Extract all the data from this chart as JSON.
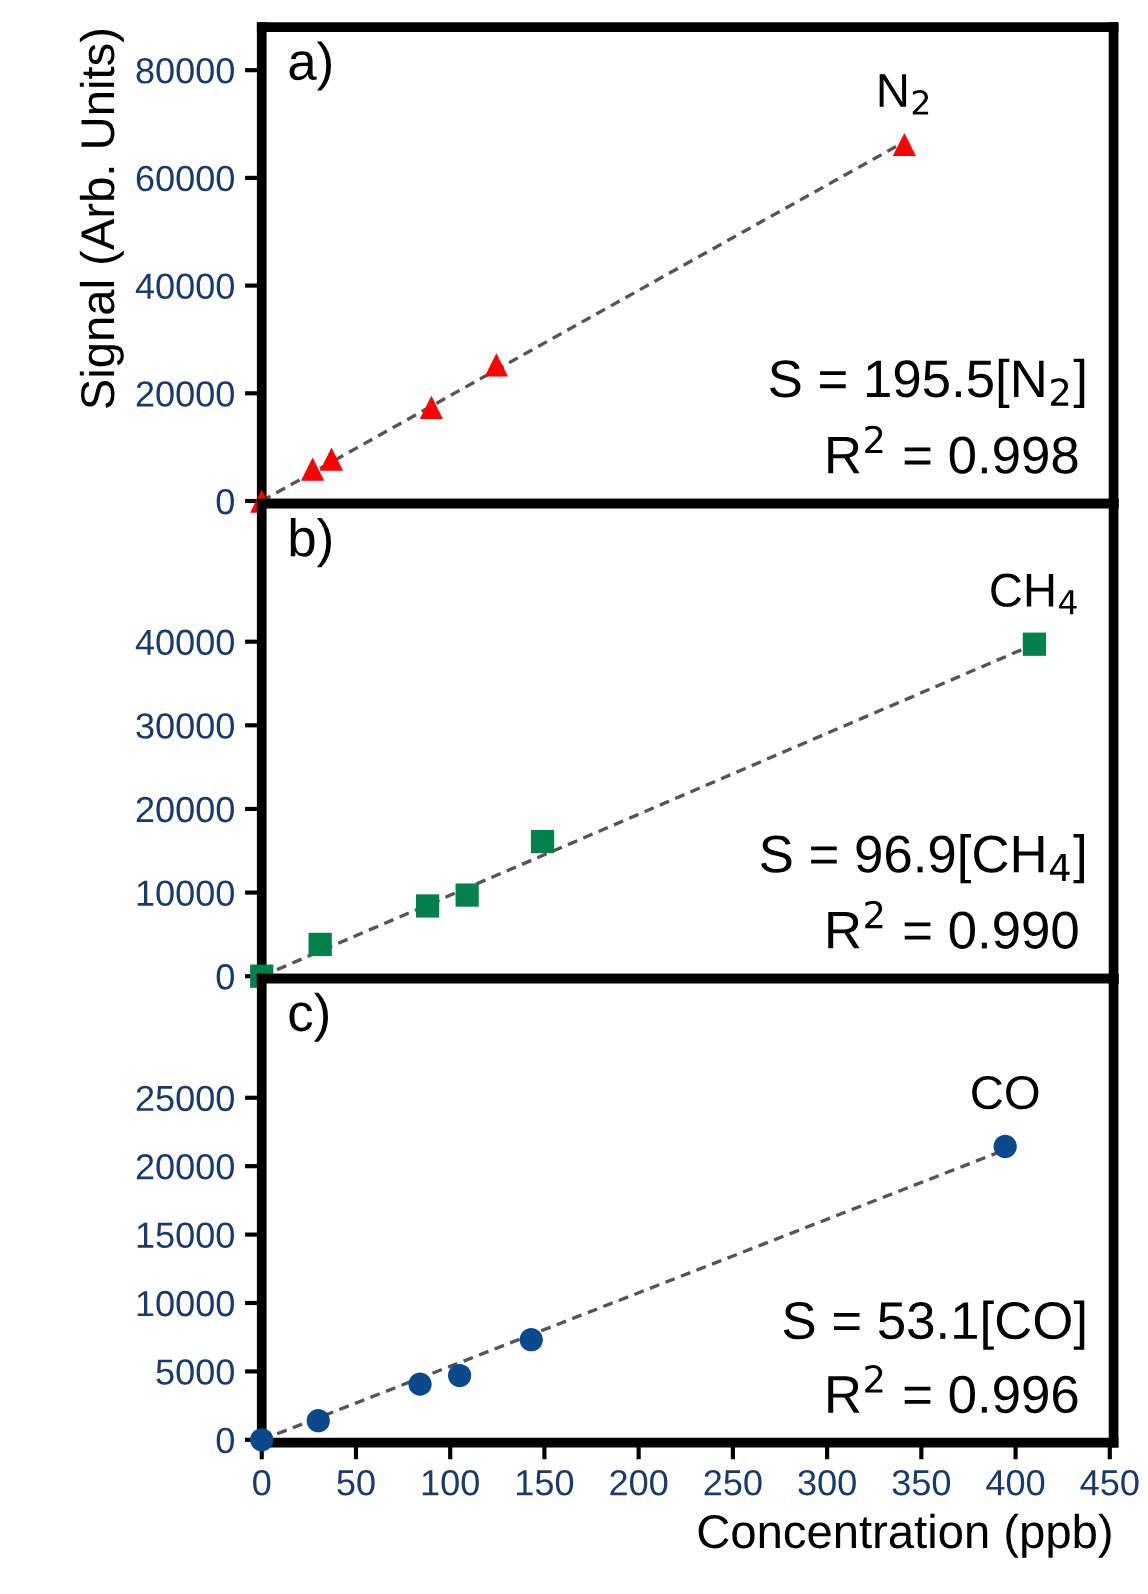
{
  "chart_data": [
    {
      "type": "scatter",
      "ylabel": "Signal (Arb. Units)",
      "annotations": [
        "a)",
        "S = 195.5[N$_{2}$]",
        "R$^{2}$ = 0.998"
      ],
      "xlim": [
        0,
        452
      ],
      "xticks": [
        0,
        50,
        100,
        150,
        200,
        250,
        300,
        350,
        400,
        450
      ],
      "ylim": [
        -500,
        88000
      ],
      "yticks": [
        0,
        20000,
        40000,
        60000,
        80000
      ],
      "tick_labels": "y",
      "grid": false,
      "legend": false,
      "series": [
        {
          "name": "N$_{2}$",
          "color": "#ff0000",
          "marker": "triangle",
          "x": [
            0,
            27,
            37,
            90,
            124.5,
            341
          ],
          "values": [
            0,
            5900,
            7800,
            17400,
            25300,
            66200
          ]
        },
        {
          "type": "line",
          "color": "#555555",
          "line_style": "dashed",
          "marker": "none",
          "x": [
            0,
            341
          ],
          "values": [
            0,
            66700
          ]
        }
      ]
    },
    {
      "type": "scatter",
      "annotations": [
        "b)",
        "S = 96.9[CH$_{4}$]",
        "R$^{2}$ = 0.990"
      ],
      "xlim": [
        0,
        452
      ],
      "xticks": [
        0,
        50,
        100,
        150,
        200,
        250,
        300,
        350,
        400,
        450
      ],
      "ylim": [
        -300,
        56500
      ],
      "yticks": [
        0,
        10000,
        20000,
        30000,
        40000
      ],
      "tick_labels": "y",
      "grid": false,
      "legend": false,
      "series": [
        {
          "name": "CH$_{4}$",
          "color": "#00804a",
          "marker": "square",
          "x": [
            0,
            31,
            88,
            109,
            149,
            410
          ],
          "values": [
            0,
            3800,
            8400,
            9700,
            16100,
            39700
          ]
        },
        {
          "type": "line",
          "color": "#555555",
          "line_style": "dashed",
          "marker": "none",
          "x": [
            0,
            410
          ],
          "values": [
            0,
            39700
          ]
        }
      ]
    },
    {
      "type": "scatter",
      "xlabel": "Concentration (ppb)",
      "annotations": [
        "c)",
        "S = 53.1[CO]",
        "R$^{2}$ = 0.996"
      ],
      "xlim": [
        0,
        452
      ],
      "xticks": [
        0,
        50,
        100,
        150,
        200,
        250,
        300,
        350,
        400,
        450
      ],
      "ylim": [
        -200,
        33700
      ],
      "yticks": [
        0,
        5000,
        10000,
        15000,
        20000,
        25000
      ],
      "grid": false,
      "legend": false,
      "series": [
        {
          "name": "CO",
          "color": "#0a4a8c",
          "marker": "circle",
          "x": [
            0,
            30,
            84,
            105,
            143,
            394.5
          ],
          "values": [
            0,
            1400,
            4070,
            4700,
            7320,
            21440
          ]
        },
        {
          "type": "line",
          "color": "#555555",
          "line_style": "dashed",
          "marker": "none",
          "x": [
            0,
            394.5
          ],
          "values": [
            0,
            21200
          ]
        }
      ]
    }
  ]
}
